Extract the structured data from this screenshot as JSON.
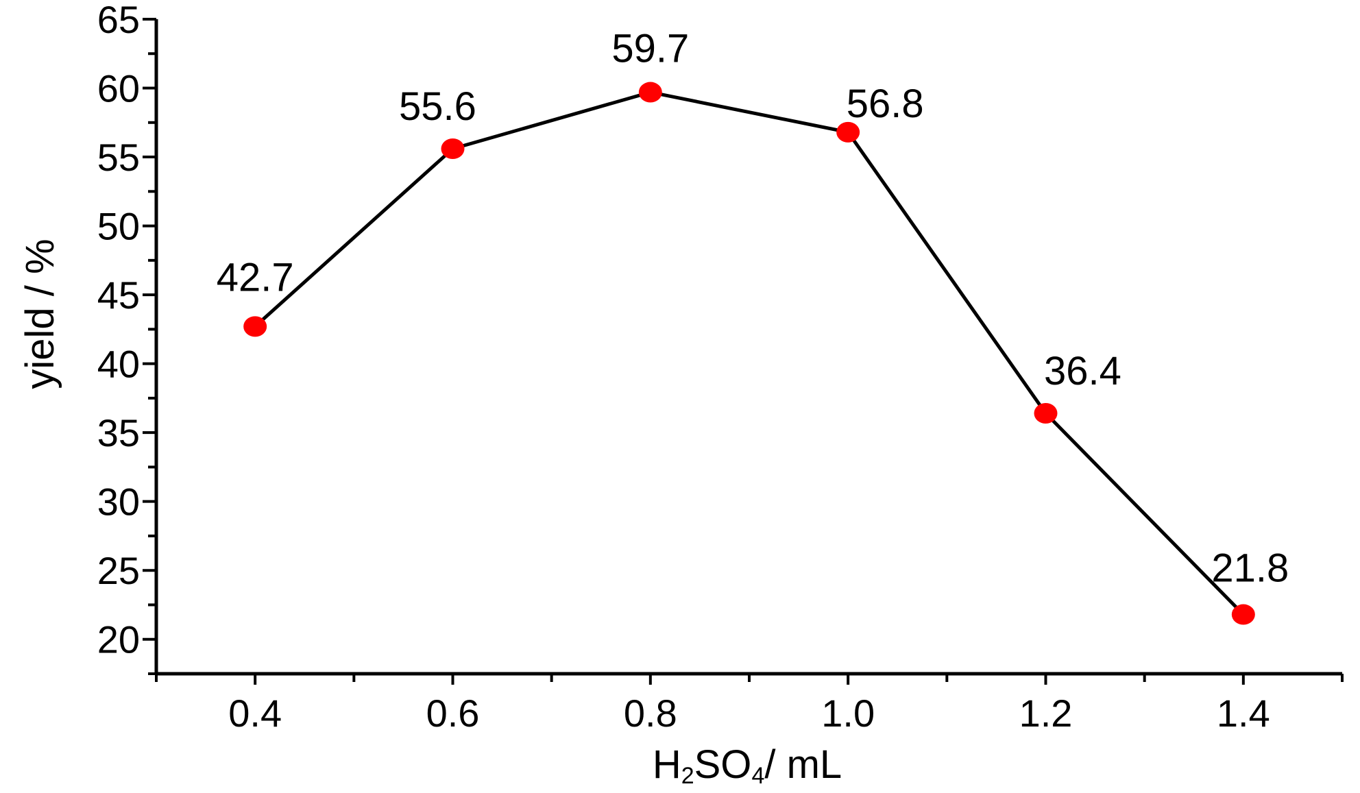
{
  "chart_data": {
    "type": "line",
    "x": [
      0.4,
      0.6,
      0.8,
      1.0,
      1.2,
      1.4
    ],
    "x_tick_labels": [
      "0.4",
      "0.6",
      "0.8",
      "1.0",
      "1.2",
      "1.4"
    ],
    "series": [
      {
        "values": [
          42.7,
          55.6,
          59.7,
          56.8,
          36.4,
          21.8
        ],
        "data_labels": [
          "42.7",
          "55.6",
          "59.7",
          "56.8",
          "36.4",
          "21.8"
        ]
      }
    ],
    "y_ticks": [
      20,
      25,
      30,
      35,
      40,
      45,
      50,
      55,
      60,
      65
    ],
    "y_tick_labels": [
      "20",
      "25",
      "30",
      "35",
      "40",
      "45",
      "50",
      "55",
      "60",
      "65"
    ],
    "xlim": [
      0.3,
      1.5
    ],
    "ylim": [
      17.5,
      65
    ],
    "x_minor_step": 0.1,
    "y_minor_step": 2.5,
    "xlabel": {
      "parts": [
        {
          "text": "H",
          "sub": false
        },
        {
          "text": "2",
          "sub": true
        },
        {
          "text": "SO",
          "sub": false
        },
        {
          "text": "4",
          "sub": true
        },
        {
          "text": "/ mL",
          "sub": false
        }
      ]
    },
    "ylabel": "yield / %",
    "grid": false,
    "legend": "none",
    "colors": {
      "line": "#000000",
      "marker": "#ff0000",
      "axis": "#000000",
      "background": "#ffffff"
    }
  }
}
